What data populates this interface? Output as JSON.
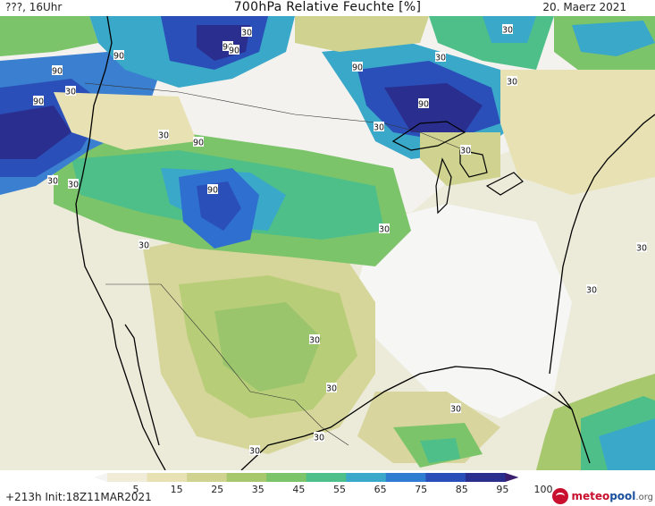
{
  "header": {
    "left": "???, 16Uhr",
    "title": "700hPa Relative Feuchte [%]",
    "right": "20. Maerz 2021"
  },
  "footer": {
    "run_info": "+213h  Init:18Z11MAR2021",
    "logo": {
      "main": "meteo",
      "accent": "pool",
      "suffix": ".org"
    }
  },
  "colorbar": {
    "ticks": [
      "5",
      "15",
      "25",
      "35",
      "45",
      "55",
      "65",
      "75",
      "85",
      "95",
      "100"
    ],
    "colors": [
      "#f4f4f2",
      "#f0ecd8",
      "#e7e1b3",
      "#cfd38f",
      "#a8c86e",
      "#7cc46a",
      "#4fbf8a",
      "#3aa8c8",
      "#2f7dd0",
      "#2a4fb8",
      "#2a2f8f",
      "#3b1e6e"
    ]
  },
  "contour_labels": [
    {
      "text": "90"
    },
    {
      "text": "90"
    },
    {
      "text": "90"
    },
    {
      "text": "90"
    },
    {
      "text": "90"
    },
    {
      "text": "90"
    },
    {
      "text": "90"
    },
    {
      "text": "90"
    },
    {
      "text": "90"
    },
    {
      "text": "30"
    },
    {
      "text": "30"
    },
    {
      "text": "30"
    },
    {
      "text": "30"
    },
    {
      "text": "30"
    },
    {
      "text": "30"
    },
    {
      "text": "30"
    },
    {
      "text": "30"
    },
    {
      "text": "30"
    },
    {
      "text": "30"
    },
    {
      "text": "30"
    },
    {
      "text": "30"
    },
    {
      "text": "30"
    },
    {
      "text": "30"
    },
    {
      "text": "30"
    },
    {
      "text": "30"
    },
    {
      "text": "30"
    },
    {
      "text": "30"
    },
    {
      "text": "30"
    }
  ]
}
